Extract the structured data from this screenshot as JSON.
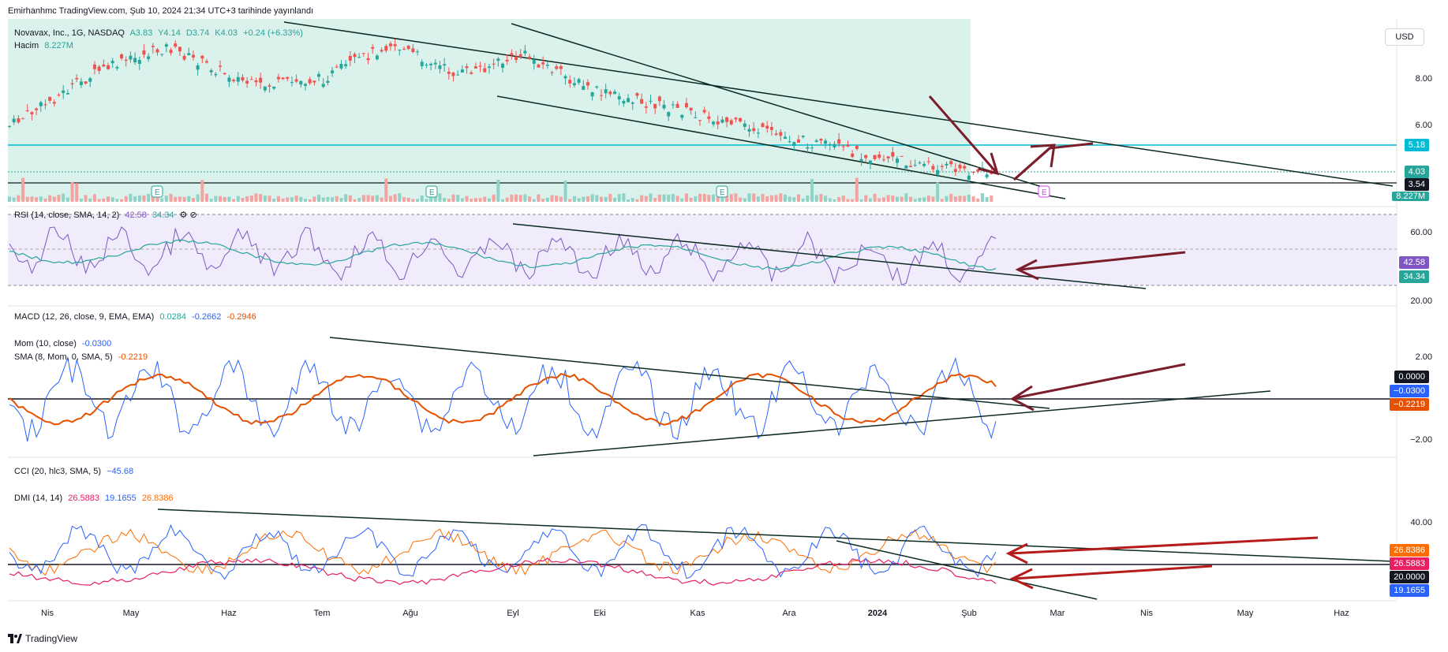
{
  "header": {
    "published": "Emirhanhmc TradingView.com, Şub 10, 2024 21:34 UTC+3 tarihinde yayınlandı"
  },
  "currency_button": "USD",
  "main_pane": {
    "symbol": "Novavax, Inc., 1G, NASDAQ",
    "open_label": "A3.83",
    "high_label": "Y4.14",
    "low_label": "D3.74",
    "close_label": "K4.03",
    "change_label": "+0.24 (+6.33%)",
    "volume_label": "Hacim",
    "volume_value": "8.227M",
    "price_ticks": [
      "8.00",
      "6.00"
    ],
    "tags": {
      "support": "5.18",
      "last": "4.03",
      "line": "3.54",
      "volume": "8.227M"
    },
    "earnings_mark": "E"
  },
  "rsi_pane": {
    "title": "RSI (14, close, SMA, 14, 2)",
    "v1": "42.58",
    "v2": "34.34",
    "ticks": [
      "60.00",
      "20.00"
    ],
    "tags": {
      "rsi": "42.58",
      "ma": "34.34"
    }
  },
  "macd_pane": {
    "title": "MACD (12, 26, close, 9, EMA, EMA)",
    "v1": "0.0284",
    "v2": "-0.2662",
    "v3": "-0.2946",
    "mom_title": "Mom (10, close)",
    "mom_value": "-0.0300",
    "sma_title": "SMA (8, Mom, 0, SMA, 5)",
    "sma_value": "-0.2219",
    "ticks": [
      "2.00",
      "−2.00"
    ],
    "tags": {
      "zero": "0.0000",
      "mom": "−0.0300",
      "sma": "−0.2219"
    }
  },
  "cci_pane": {
    "title": "CCI (20, hlc3, SMA, 5)",
    "value": "−45.68",
    "dmi_title": "DMI (14, 14)",
    "dmi_plus": "26.5883",
    "dmi_minus": "19.1655",
    "dmi_adx": "26.8386",
    "ticks": [
      "40.00"
    ],
    "tags": {
      "adx": "26.8386",
      "plus": "26.5883",
      "level": "20.0000",
      "minus": "19.1655"
    }
  },
  "x_axis": [
    "Nis",
    "May",
    "Haz",
    "Tem",
    "Ağu",
    "Eyl",
    "Eki",
    "Kas",
    "Ara",
    "2024",
    "Şub",
    "Mar",
    "Nis",
    "May",
    "Haz"
  ],
  "footer": {
    "brand": "TradingView"
  },
  "colors": {
    "up": "#26a69a",
    "down": "#ef5350",
    "teal_zone": "#d4eee9",
    "rsi_bg": "#f1ecfb",
    "arrow": "#7b1d2a",
    "trend": "#0b2a22",
    "support": "#00bcd4",
    "macd_mom": "#2962ff",
    "macd_sma": "#e65100",
    "dmi_plus": "#e91e63",
    "dmi_minus": "#2962ff",
    "dmi_adx": "#ff6d00"
  }
}
